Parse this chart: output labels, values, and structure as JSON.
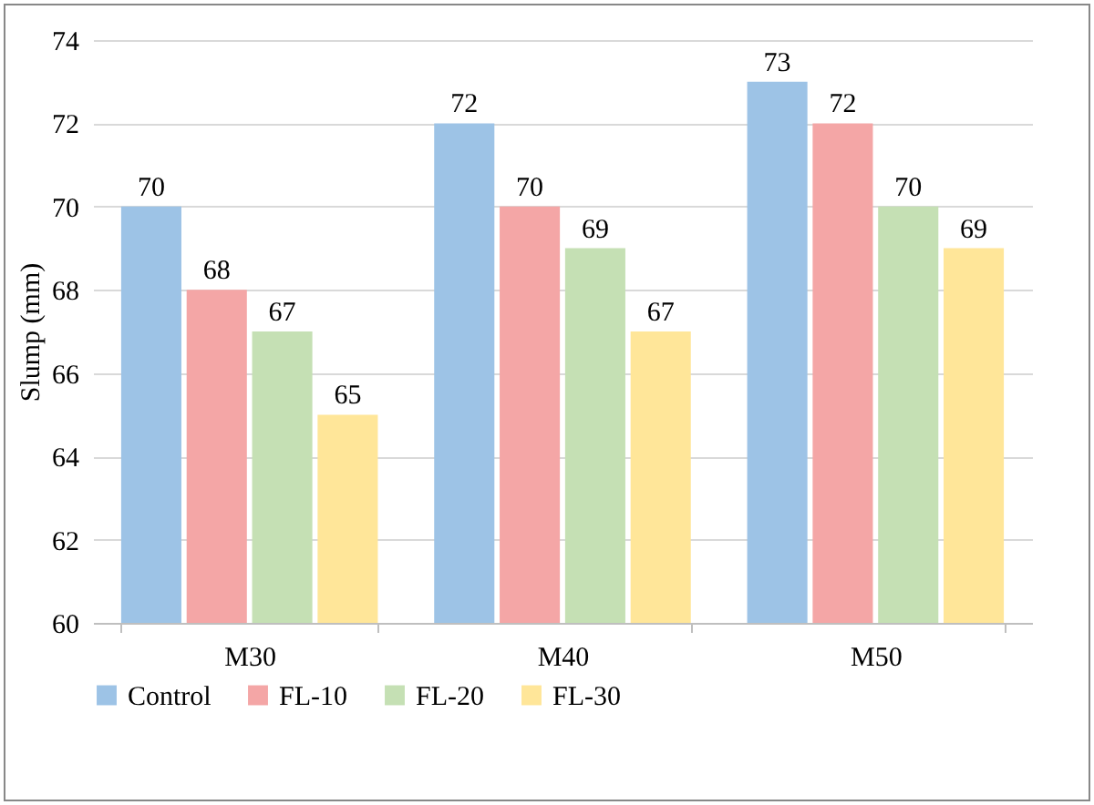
{
  "chart_data": {
    "type": "bar",
    "ylabel": "Slump (mm)",
    "categories": [
      "M30",
      "M40",
      "M50"
    ],
    "series": [
      {
        "name": "Control",
        "color": "#9dc3e6",
        "values": [
          70,
          72,
          73
        ]
      },
      {
        "name": "FL-10",
        "color": "#f4a6a6",
        "values": [
          68,
          70,
          72
        ]
      },
      {
        "name": "FL-20",
        "color": "#c5e0b4",
        "values": [
          67,
          69,
          70
        ]
      },
      {
        "name": "FL-30",
        "color": "#ffe699",
        "values": [
          65,
          67,
          69
        ]
      }
    ],
    "ylim": [
      60,
      74
    ],
    "yticks": [
      60,
      62,
      64,
      66,
      68,
      70,
      72,
      74
    ],
    "grid": "y",
    "legend": "bottom",
    "data_labels": true
  }
}
